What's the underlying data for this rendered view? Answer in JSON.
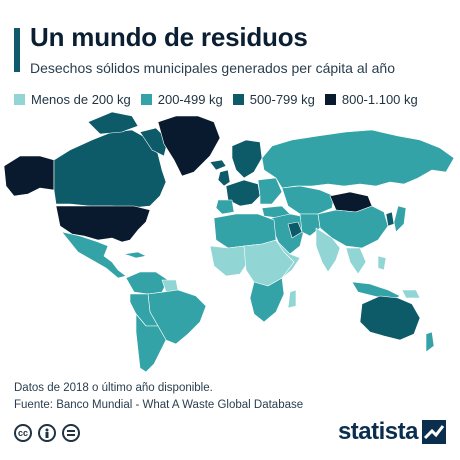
{
  "header": {
    "title": "Un mundo de residuos",
    "subtitle": "Desechos sólidos municipales generados per cápita al año"
  },
  "legend": [
    {
      "label": "Menos de 200 kg",
      "color": "#92d5d5"
    },
    {
      "label": "200-499 kg",
      "color": "#33a3a7"
    },
    {
      "label": "500-799 kg",
      "color": "#0d5b68"
    },
    {
      "label": "800-1.100 kg",
      "color": "#0a1a2e"
    }
  ],
  "footer": {
    "note": "Datos de 2018 o último año disponible.",
    "source": "Fuente: Banco Mundial - What A Waste Global Database",
    "brand": "statista",
    "license_icons": [
      "cc-icon",
      "person-icon",
      "equals-icon"
    ]
  }
}
